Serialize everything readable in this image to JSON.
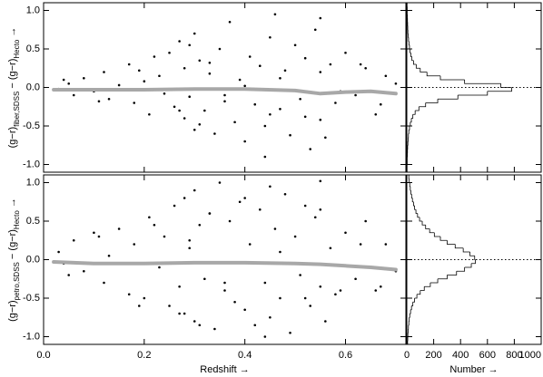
{
  "chart_data": [
    {
      "type": "scatter",
      "ylabel_parts": [
        {
          "text": "(g−r)"
        },
        {
          "text": "fiber,SDSS",
          "sub": true
        },
        {
          "text": " − (g−r)"
        },
        {
          "text": "Hecto",
          "sub": true
        },
        {
          "text": " →"
        }
      ],
      "xlim": [
        0,
        0.72
      ],
      "ylim": [
        -1.1,
        1.1
      ],
      "yticks": [
        {
          "value": -1,
          "label": "-1.0"
        },
        {
          "value": -0.5,
          "label": "-0.5"
        },
        {
          "value": 0,
          "label": "0.0"
        },
        0.5,
        {
          "value": 1,
          "label": "1.0"
        }
      ],
      "color": "#000000",
      "x": [
        0.03,
        0.05,
        0.06,
        0.08,
        0.1,
        0.12,
        0.13,
        0.15,
        0.17,
        0.18,
        0.2,
        0.21,
        0.23,
        0.24,
        0.25,
        0.26,
        0.27,
        0.28,
        0.28,
        0.29,
        0.3,
        0.3,
        0.31,
        0.32,
        0.33,
        0.34,
        0.35,
        0.36,
        0.37,
        0.38,
        0.39,
        0.4,
        0.41,
        0.42,
        0.43,
        0.44,
        0.45,
        0.45,
        0.46,
        0.47,
        0.48,
        0.49,
        0.5,
        0.51,
        0.52,
        0.53,
        0.54,
        0.55,
        0.55,
        0.56,
        0.57,
        0.58,
        0.6,
        0.62,
        0.64,
        0.66,
        0.68,
        0.7,
        0.04,
        0.11,
        0.19,
        0.22,
        0.27,
        0.29,
        0.31,
        0.33,
        0.36,
        0.4,
        0.44,
        0.47,
        0.52,
        0.55,
        0.59,
        0.63,
        0.67
      ],
      "y": [
        -0.02,
        0.05,
        -0.1,
        0.12,
        -0.05,
        0.2,
        -0.15,
        0.03,
        0.3,
        -0.2,
        0.08,
        -0.35,
        0.15,
        -0.08,
        0.45,
        -0.25,
        0.6,
        -0.4,
        0.25,
        -0.12,
        0.7,
        -0.55,
        0.35,
        -0.3,
        0.18,
        -0.6,
        0.5,
        -0.18,
        0.85,
        -0.45,
        0.1,
        -0.7,
        0.4,
        -0.22,
        0.28,
        -0.5,
        0.65,
        -0.35,
        0.95,
        -0.28,
        0.22,
        -0.62,
        0.55,
        -0.15,
        0.38,
        -0.8,
        0.75,
        -0.42,
        0.9,
        -0.65,
        0.3,
        -0.2,
        0.45,
        -0.1,
        0.25,
        -0.35,
        0.15,
        0.05,
        0.1,
        -0.18,
        0.22,
        0.4,
        -0.3,
        0.55,
        -0.48,
        0.32,
        -0.1,
        0.02,
        -0.9,
        0.12,
        -0.38,
        0.2,
        -0.05,
        0.3,
        -0.22
      ],
      "trend": {
        "color": "#a8a8a8",
        "x": [
          0.02,
          0.1,
          0.2,
          0.3,
          0.4,
          0.5,
          0.55,
          0.6,
          0.65,
          0.7
        ],
        "y": [
          -0.03,
          -0.03,
          -0.03,
          -0.02,
          -0.02,
          -0.04,
          -0.08,
          -0.06,
          -0.05,
          -0.08
        ]
      }
    },
    {
      "type": "histogram",
      "color": "#000000",
      "xlim": [
        0,
        1000
      ],
      "ylim": [
        -1.1,
        1.1
      ],
      "reference_line": 0,
      "bins": [
        -1.1,
        -1.05,
        -1,
        -0.95,
        -0.9,
        -0.85,
        -0.8,
        -0.75,
        -0.7,
        -0.65,
        -0.6,
        -0.55,
        -0.5,
        -0.45,
        -0.4,
        -0.35,
        -0.3,
        -0.25,
        -0.2,
        -0.15,
        -0.1,
        -0.05,
        0,
        0.05,
        0.1,
        0.15,
        0.2,
        0.25,
        0.3,
        0.35,
        0.4,
        0.45,
        0.5,
        0.55,
        0.6,
        0.65,
        0.7,
        0.75,
        0.8,
        0.85,
        0.9,
        0.95,
        1,
        1.05,
        1.1
      ],
      "counts": [
        2,
        2,
        3,
        3,
        4,
        5,
        6,
        8,
        10,
        12,
        15,
        20,
        26,
        34,
        45,
        62,
        90,
        140,
        230,
        380,
        600,
        780,
        700,
        430,
        250,
        150,
        100,
        70,
        50,
        38,
        30,
        24,
        20,
        16,
        13,
        10,
        8,
        7,
        6,
        5,
        4,
        3,
        3,
        2
      ]
    },
    {
      "type": "scatter",
      "ylabel_parts": [
        {
          "text": "(g−r)"
        },
        {
          "text": "petro,SDSS",
          "sub": true
        },
        {
          "text": " − (g−r)"
        },
        {
          "text": "Hecto",
          "sub": true
        },
        {
          "text": " →"
        }
      ],
      "xlabel": "Redshift →",
      "xlim": [
        0,
        0.72
      ],
      "ylim": [
        -1.1,
        1.1
      ],
      "xticks": [
        {
          "value": 0,
          "label": "0.0"
        },
        0.2,
        0.4,
        0.6
      ],
      "yticks": [
        {
          "value": -1,
          "label": "-1.0"
        },
        {
          "value": -0.5,
          "label": "-0.5"
        },
        {
          "value": 0,
          "label": "0.0"
        },
        0.5,
        {
          "value": 1,
          "label": "1.0"
        }
      ],
      "color": "#000000",
      "x": [
        0.03,
        0.05,
        0.06,
        0.08,
        0.1,
        0.12,
        0.13,
        0.15,
        0.17,
        0.18,
        0.2,
        0.21,
        0.23,
        0.24,
        0.25,
        0.26,
        0.27,
        0.28,
        0.28,
        0.29,
        0.3,
        0.3,
        0.31,
        0.32,
        0.33,
        0.34,
        0.35,
        0.36,
        0.37,
        0.38,
        0.39,
        0.4,
        0.41,
        0.42,
        0.43,
        0.44,
        0.45,
        0.45,
        0.46,
        0.47,
        0.48,
        0.49,
        0.5,
        0.51,
        0.52,
        0.53,
        0.54,
        0.55,
        0.55,
        0.56,
        0.57,
        0.58,
        0.6,
        0.62,
        0.64,
        0.66,
        0.68,
        0.7,
        0.04,
        0.11,
        0.19,
        0.22,
        0.27,
        0.29,
        0.31,
        0.33,
        0.36,
        0.4,
        0.44,
        0.47,
        0.52,
        0.55,
        0.59,
        0.63,
        0.67
      ],
      "y": [
        0.1,
        -0.2,
        0.25,
        -0.15,
        0.35,
        -0.3,
        0.05,
        0.4,
        -0.45,
        0.2,
        -0.5,
        0.55,
        -0.1,
        0.3,
        -0.6,
        0.7,
        -0.35,
        0.8,
        -0.7,
        0.15,
        0.9,
        -0.8,
        0.45,
        -0.25,
        0.6,
        -0.9,
        1,
        -0.4,
        0.5,
        -0.55,
        0.75,
        -0.65,
        0.2,
        -0.85,
        0.65,
        -0.3,
        0.95,
        -0.75,
        0.4,
        -0.5,
        0.85,
        -0.95,
        0.3,
        -0.2,
        0.7,
        -0.6,
        0.55,
        -0.35,
        1.02,
        -0.8,
        0.15,
        -0.45,
        0.35,
        -0.25,
        0.5,
        -0.4,
        0.2,
        -0.15,
        -0.05,
        0.3,
        -0.6,
        0.45,
        -0.7,
        0.25,
        -0.85,
        0.6,
        -0.3,
        0.8,
        -1,
        0.1,
        -0.5,
        0.65,
        -0.4,
        0.2,
        -0.35
      ],
      "trend": {
        "color": "#a8a8a8",
        "x": [
          0.02,
          0.1,
          0.2,
          0.3,
          0.4,
          0.5,
          0.55,
          0.6,
          0.65,
          0.7
        ],
        "y": [
          -0.03,
          -0.05,
          -0.05,
          -0.04,
          -0.04,
          -0.05,
          -0.06,
          -0.08,
          -0.1,
          -0.13
        ]
      }
    },
    {
      "type": "histogram",
      "color": "#000000",
      "xlabel": "Number →",
      "xlim": [
        0,
        1000
      ],
      "ylim": [
        -1.1,
        1.1
      ],
      "reference_line": 0,
      "xticks": [
        0,
        200,
        400,
        600,
        800,
        1000
      ],
      "bins": [
        -1.1,
        -1.05,
        -1,
        -0.95,
        -0.9,
        -0.85,
        -0.8,
        -0.75,
        -0.7,
        -0.65,
        -0.6,
        -0.55,
        -0.5,
        -0.45,
        -0.4,
        -0.35,
        -0.3,
        -0.25,
        -0.2,
        -0.15,
        -0.1,
        -0.05,
        0,
        0.05,
        0.1,
        0.15,
        0.2,
        0.25,
        0.3,
        0.35,
        0.4,
        0.45,
        0.5,
        0.55,
        0.6,
        0.65,
        0.7,
        0.75,
        0.8,
        0.85,
        0.9,
        0.95,
        1,
        1.05,
        1.1
      ],
      "counts": [
        6,
        7,
        8,
        10,
        12,
        15,
        18,
        22,
        28,
        35,
        45,
        58,
        75,
        100,
        130,
        175,
        230,
        300,
        370,
        430,
        480,
        510,
        505,
        470,
        420,
        360,
        300,
        250,
        205,
        170,
        140,
        115,
        95,
        80,
        68,
        58,
        50,
        42,
        36,
        30,
        26,
        22,
        18,
        15
      ]
    }
  ]
}
